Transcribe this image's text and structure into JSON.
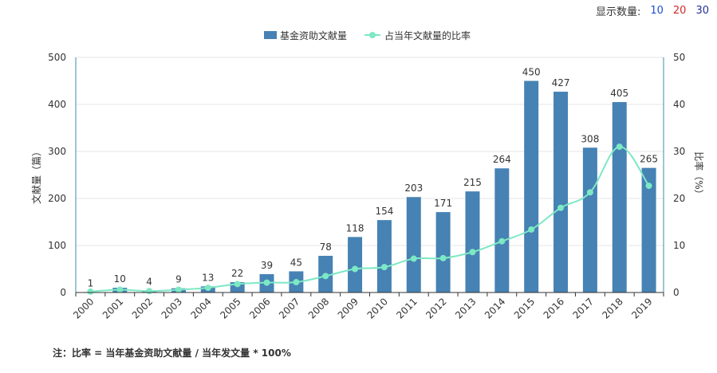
{
  "controls": {
    "label": "显示数量:",
    "options": [
      "10",
      "20",
      "30"
    ]
  },
  "note": "注：比率 = 当年基金资助文献量 / 当年发文量 * 100%",
  "colors": {
    "bar": "#4682b4",
    "line": "#7de8c4",
    "grid": "#e5e5e5",
    "axis": "#3a8fa8"
  },
  "chart_data": {
    "type": "bar",
    "categories": [
      "2000",
      "2001",
      "2002",
      "2003",
      "2004",
      "2005",
      "2006",
      "2007",
      "2008",
      "2009",
      "2010",
      "2011",
      "2012",
      "2013",
      "2014",
      "2015",
      "2016",
      "2017",
      "2018",
      "2019"
    ],
    "series": [
      {
        "name": "基金资助文献量",
        "type": "bar",
        "axis": "left",
        "values": [
          1,
          10,
          4,
          9,
          13,
          22,
          39,
          45,
          78,
          118,
          154,
          203,
          171,
          215,
          264,
          450,
          427,
          308,
          405,
          265
        ]
      },
      {
        "name": "占当年文献量的比率",
        "type": "line",
        "axis": "right",
        "values": [
          0.2,
          0.6,
          0.3,
          0.6,
          1.0,
          1.8,
          2.1,
          2.2,
          3.5,
          5.0,
          5.4,
          7.2,
          7.3,
          8.6,
          10.9,
          13.4,
          18.0,
          21.3,
          31.0,
          22.7
        ]
      }
    ],
    "ylabel": "文献量（篇）",
    "y2label": "比率（%）",
    "ylim": [
      0,
      500
    ],
    "y2lim": [
      0,
      50
    ],
    "yticks": [
      0,
      100,
      200,
      300,
      400,
      500
    ],
    "y2ticks": [
      0,
      10,
      20,
      30,
      40,
      50
    ],
    "grid": true,
    "legend": "top-center"
  }
}
